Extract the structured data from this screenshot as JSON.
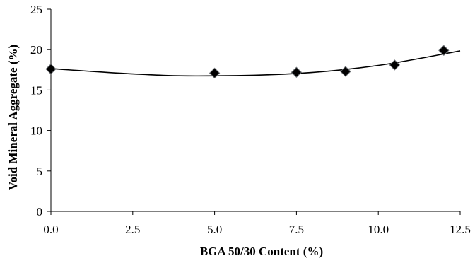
{
  "chart_data": {
    "type": "scatter",
    "title": "",
    "xlabel": "BGA 50/30 Content (%)",
    "ylabel": "Void Mineral Aggregate (%)",
    "xlim": [
      0,
      12.5
    ],
    "ylim": [
      0,
      25
    ],
    "xticks": [
      "0.0",
      "2.5",
      "5.0",
      "7.5",
      "10.0",
      "12.5"
    ],
    "yticks": [
      "0",
      "5",
      "10",
      "15",
      "20",
      "25"
    ],
    "grid": false,
    "legend": "none",
    "series": [
      {
        "marker": "diamond",
        "color": "#000000",
        "points": [
          {
            "x": 0.0,
            "y": 17.6
          },
          {
            "x": 5.0,
            "y": 17.1
          },
          {
            "x": 7.5,
            "y": 17.2
          },
          {
            "x": 9.0,
            "y": 17.3
          },
          {
            "x": 10.5,
            "y": 18.1
          },
          {
            "x": 12.0,
            "y": 19.9
          }
        ]
      }
    ],
    "trendline": {
      "type": "polynomial-2",
      "color": "#000000",
      "points": [
        {
          "x": 0.0,
          "y": 17.65
        },
        {
          "x": 2.5,
          "y": 17.0
        },
        {
          "x": 4.5,
          "y": 16.75
        },
        {
          "x": 7.5,
          "y": 17.05
        },
        {
          "x": 10.0,
          "y": 18.05
        },
        {
          "x": 12.5,
          "y": 19.85
        }
      ]
    }
  }
}
